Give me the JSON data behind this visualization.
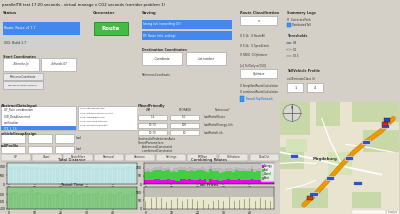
{
  "title": "parallelTB test 17:20 seconds - virtual manage v CO2 seconds (corridor problem 1)",
  "bg_color": "#d4d0c8",
  "panel_bg": "#f0ece8",
  "tab_labels": [
    "GP",
    "Chart",
    "RouteFilter",
    "Removal",
    "Variance",
    "Settings",
    "BFWise",
    "Utilisation",
    "DataOut"
  ],
  "chart1_title": "Total Distance",
  "chart2_title": "Combining Routes",
  "chart3_title": "Travel Time",
  "chart4_title": "Toll Prices",
  "chart1_color": "#c8e8e8",
  "chart3_color": "#88cc88",
  "chart4_color": "#e8e8cc",
  "chart4_gray": "#c0c0b8",
  "legend2_labels": [
    "Energy",
    "Fuel",
    "Diesel",
    "Boat"
  ],
  "legend2_colors": [
    "#ff00ff",
    "#44cc44",
    "#cccccc",
    "#888888"
  ],
  "route_btn_color": "#44bb44",
  "route_btn_text": "Route",
  "map_bg_land": "#e8e4d0",
  "map_bg_green": "#c8d8a8",
  "map_road_orange": "#e8a020",
  "map_road_white": "#ffffff"
}
